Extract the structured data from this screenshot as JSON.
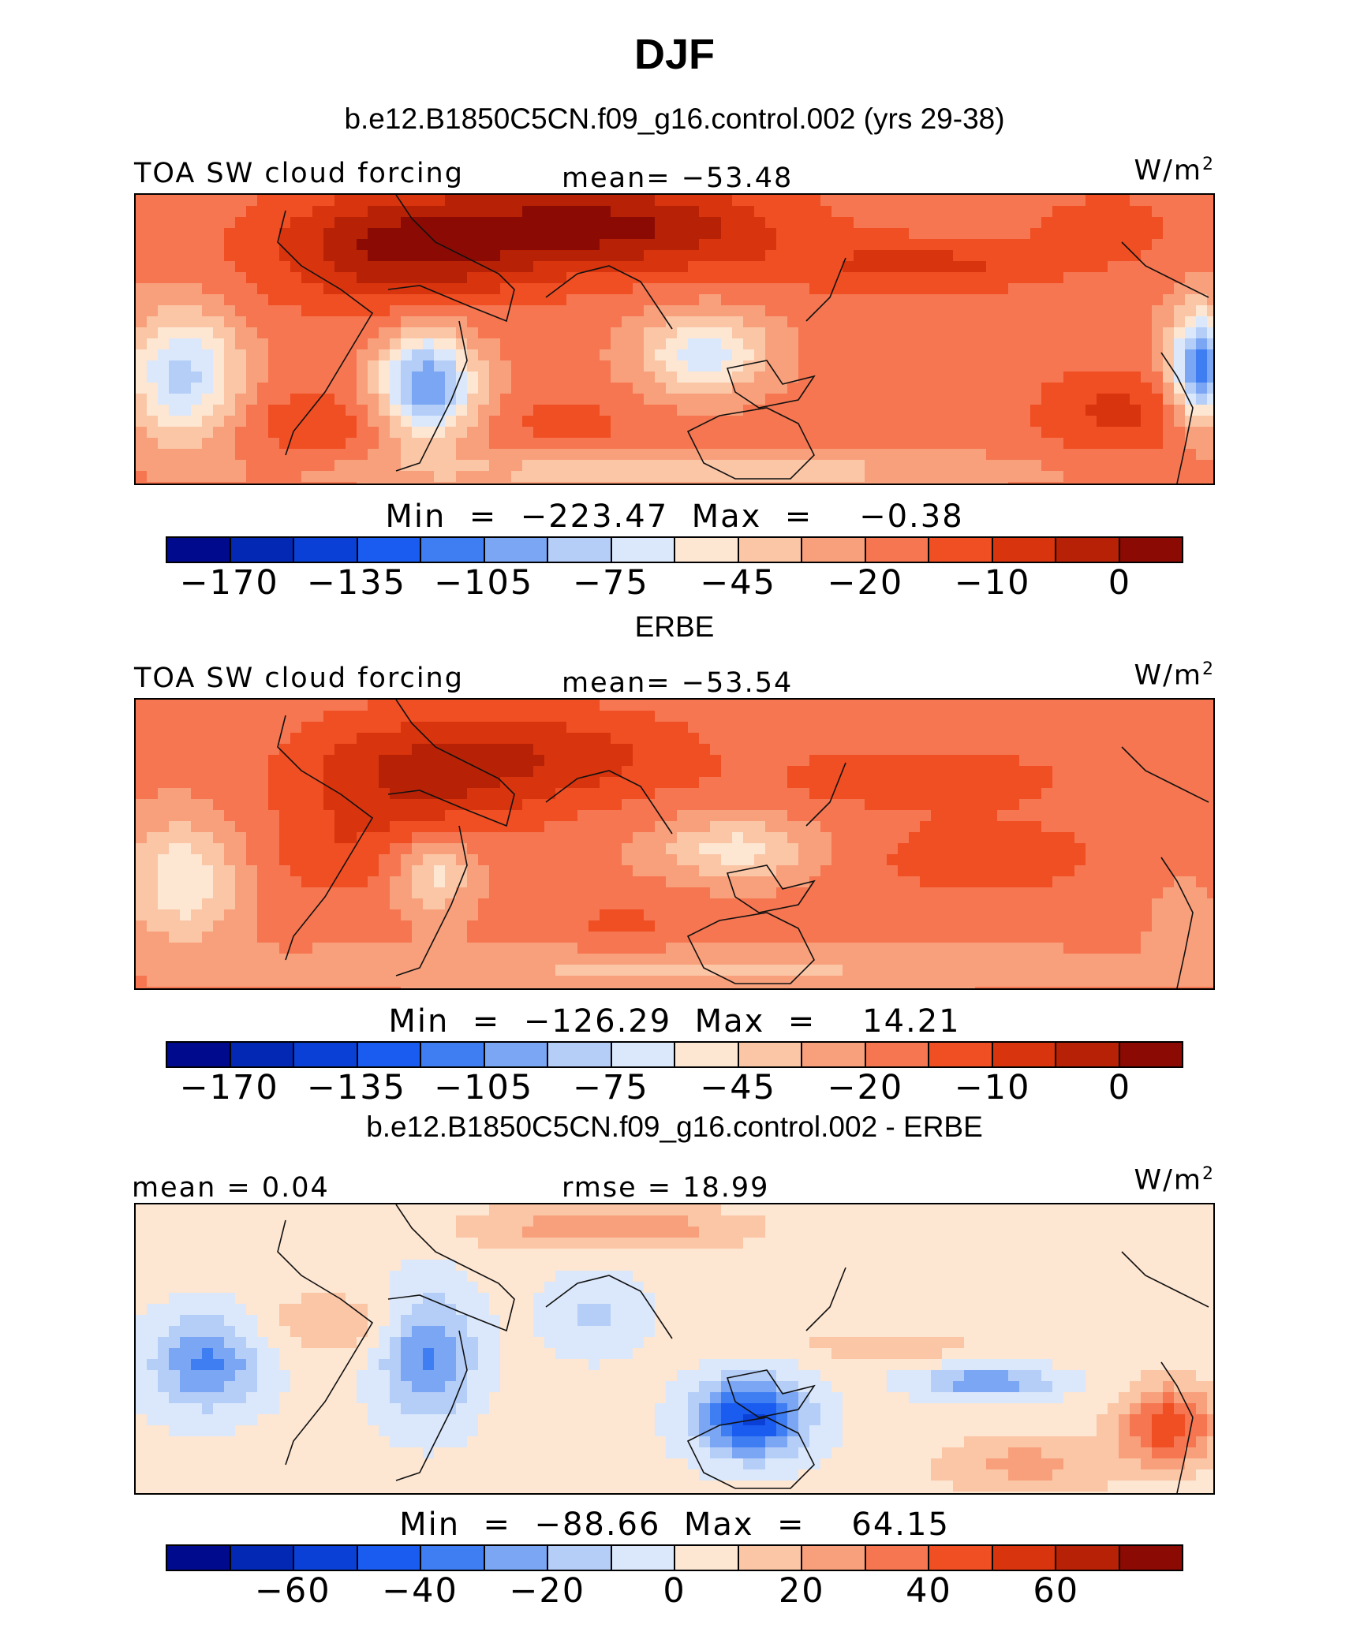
{
  "title": "DJF",
  "units_prefix": "W/m",
  "units_sup": "2",
  "panels": [
    {
      "heading": "b.e12.B1850C5CN.f09_g16.control.002 (yrs 29-38)",
      "left_label": "TOA SW cloud forcing",
      "center_label": "mean=  −53.48",
      "minmax": "Min  =  −223.47  Max  =    −0.38",
      "ticks": [
        "−170",
        "−135",
        "−105",
        "−75",
        "−45",
        "−20",
        "−10",
        "0"
      ],
      "colors": [
        "#000a8c",
        "#0228b4",
        "#0a40d6",
        "#1a5cf0",
        "#3e7ef2",
        "#7aa6f4",
        "#b4cef8",
        "#dbe8fb",
        "#fde6d2",
        "#fbc6a6",
        "#f8a07c",
        "#f57650",
        "#f04e23",
        "#d8340e",
        "#b72206",
        "#8c0a04"
      ],
      "field": "model"
    },
    {
      "heading": "ERBE",
      "left_label": "TOA SW cloud forcing",
      "center_label": "mean=  −53.54",
      "minmax": "Min  =  −126.29  Max  =    14.21",
      "ticks": [
        "−170",
        "−135",
        "−105",
        "−75",
        "−45",
        "−20",
        "−10",
        "0"
      ],
      "colors": [
        "#000a8c",
        "#0228b4",
        "#0a40d6",
        "#1a5cf0",
        "#3e7ef2",
        "#7aa6f4",
        "#b4cef8",
        "#dbe8fb",
        "#fde6d2",
        "#fbc6a6",
        "#f8a07c",
        "#f57650",
        "#f04e23",
        "#d8340e",
        "#b72206",
        "#8c0a04"
      ],
      "field": "obs"
    },
    {
      "heading": "b.e12.B1850C5CN.f09_g16.control.002 - ERBE",
      "left_label": "mean  =    0.04",
      "center_label": "rmse  =    18.99",
      "minmax": "Min  =  −88.66  Max  =    64.15",
      "ticks": [
        "−60",
        "−40",
        "−20",
        "0",
        "20",
        "40",
        "60"
      ],
      "colors": [
        "#000a8c",
        "#0228b4",
        "#0a40d6",
        "#1a5cf0",
        "#3e7ef2",
        "#7aa6f4",
        "#b4cef8",
        "#dbe8fb",
        "#fde6d2",
        "#fbc6a6",
        "#f8a07c",
        "#f57650",
        "#f04e23",
        "#d8340e",
        "#b72206",
        "#8c0a04"
      ],
      "field": "diff"
    }
  ]
}
